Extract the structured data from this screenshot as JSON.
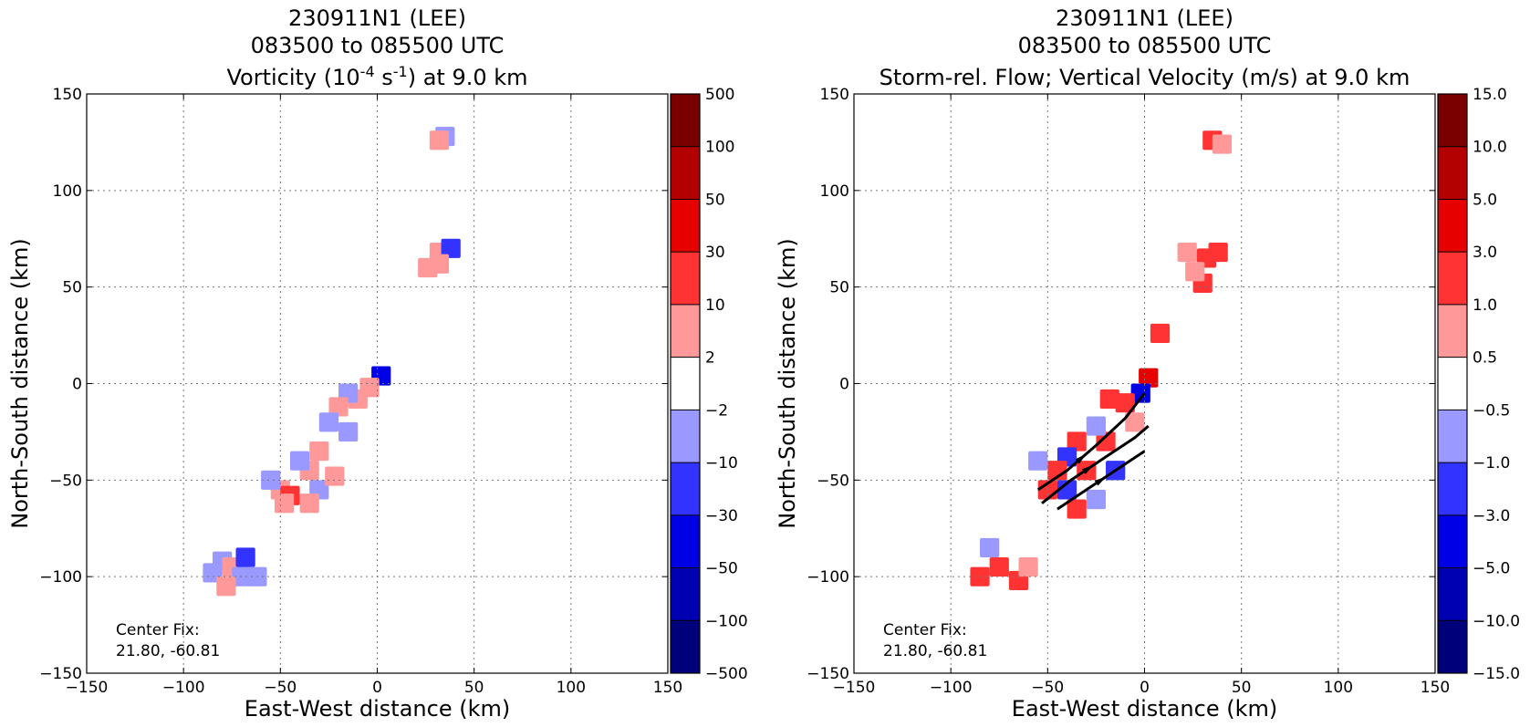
{
  "chart_data": [
    {
      "type": "heatmap",
      "title_lines": [
        "230911N1 (LEE)",
        "083500 to 085500 UTC"
      ],
      "title_var": {
        "pre": "Vorticity (10",
        "exp1": "-4",
        "mid": " s",
        "exp2": "-1",
        "post": ") at 9.0 km"
      },
      "xlabel": "East-West distance (km)",
      "ylabel": "North-South distance (km)",
      "xlim": [
        -150,
        150
      ],
      "ylim": [
        -150,
        150
      ],
      "xticks": [
        -150,
        -100,
        -50,
        0,
        50,
        100,
        150
      ],
      "yticks": [
        -150,
        -100,
        -50,
        0,
        50,
        100,
        150
      ],
      "xtick_labels": [
        "−150",
        "−100",
        "−50",
        "0",
        "50",
        "100",
        "150"
      ],
      "ytick_labels": [
        "−150",
        "−100",
        "−50",
        "0",
        "50",
        "100",
        "150"
      ],
      "grid": true,
      "annotation": [
        "Center Fix:",
        "21.80, -60.81"
      ],
      "colorbar": {
        "levels": [
          "500",
          "100",
          "50",
          "30",
          "10",
          "2",
          "−2",
          "−10",
          "−30",
          "−50",
          "−100",
          "−500"
        ],
        "colors": [
          "#7a0000",
          "#b30000",
          "#e60000",
          "#ff3333",
          "#ff9999",
          "#ffffff",
          "#9999ff",
          "#3333ff",
          "#0000e6",
          "#0000b3",
          "#00007a"
        ]
      },
      "cells": [
        {
          "x": 35,
          "y": 128,
          "v": -1
        },
        {
          "x": 32,
          "y": 126,
          "v": 1
        },
        {
          "x": 32,
          "y": 68,
          "v": 1
        },
        {
          "x": 38,
          "y": 70,
          "v": -2
        },
        {
          "x": 26,
          "y": 60,
          "v": 1
        },
        {
          "x": 32,
          "y": 62,
          "v": 1
        },
        {
          "x": 2,
          "y": 4,
          "v": -3
        },
        {
          "x": -4,
          "y": -2,
          "v": 1
        },
        {
          "x": -10,
          "y": -8,
          "v": 1
        },
        {
          "x": -15,
          "y": -5,
          "v": -1
        },
        {
          "x": -20,
          "y": -12,
          "v": 1
        },
        {
          "x": -25,
          "y": -20,
          "v": -1
        },
        {
          "x": -15,
          "y": -25,
          "v": -1
        },
        {
          "x": -30,
          "y": -35,
          "v": 1
        },
        {
          "x": -35,
          "y": -45,
          "v": 1
        },
        {
          "x": -40,
          "y": -40,
          "v": -1
        },
        {
          "x": -50,
          "y": -55,
          "v": 1
        },
        {
          "x": -45,
          "y": -58,
          "v": 2
        },
        {
          "x": -48,
          "y": -62,
          "v": 1
        },
        {
          "x": -55,
          "y": -50,
          "v": -1
        },
        {
          "x": -30,
          "y": -55,
          "v": -1
        },
        {
          "x": -22,
          "y": -48,
          "v": 1
        },
        {
          "x": -35,
          "y": -62,
          "v": 1
        },
        {
          "x": -80,
          "y": -92,
          "v": -1
        },
        {
          "x": -75,
          "y": -95,
          "v": 1
        },
        {
          "x": -70,
          "y": -100,
          "v": -1
        },
        {
          "x": -85,
          "y": -98,
          "v": -1
        },
        {
          "x": -68,
          "y": -90,
          "v": -2
        },
        {
          "x": -62,
          "y": -100,
          "v": -1
        },
        {
          "x": -78,
          "y": -105,
          "v": 1
        }
      ],
      "flow_lines": []
    },
    {
      "type": "heatmap",
      "title_lines": [
        "230911N1 (LEE)",
        "083500 to 085500 UTC"
      ],
      "title_var": {
        "pre": "Storm-rel. Flow; Vertical Velocity (m/s) at 9.0 km",
        "exp1": "",
        "mid": "",
        "exp2": "",
        "post": ""
      },
      "xlabel": "East-West distance (km)",
      "ylabel": "North-South distance (km)",
      "xlim": [
        -150,
        150
      ],
      "ylim": [
        -150,
        150
      ],
      "xticks": [
        -150,
        -100,
        -50,
        0,
        50,
        100,
        150
      ],
      "yticks": [
        -150,
        -100,
        -50,
        0,
        50,
        100,
        150
      ],
      "xtick_labels": [
        "−150",
        "−100",
        "−50",
        "0",
        "50",
        "100",
        "150"
      ],
      "ytick_labels": [
        "−150",
        "−100",
        "−50",
        "0",
        "50",
        "100",
        "150"
      ],
      "grid": true,
      "annotation": [
        "Center Fix:",
        "21.80, -60.81"
      ],
      "colorbar": {
        "levels": [
          "15.0",
          "10.0",
          "5.0",
          "3.0",
          "1.0",
          "0.5",
          "−0.5",
          "−1.0",
          "−3.0",
          "−5.0",
          "−10.0",
          "−15.0"
        ],
        "colors": [
          "#7a0000",
          "#b30000",
          "#e60000",
          "#ff3333",
          "#ff9999",
          "#ffffff",
          "#9999ff",
          "#3333ff",
          "#0000e6",
          "#0000b3",
          "#00007a"
        ]
      },
      "cells": [
        {
          "x": 35,
          "y": 126,
          "v": 2
        },
        {
          "x": 40,
          "y": 124,
          "v": 1
        },
        {
          "x": 22,
          "y": 68,
          "v": 1
        },
        {
          "x": 32,
          "y": 65,
          "v": 2
        },
        {
          "x": 38,
          "y": 68,
          "v": 2
        },
        {
          "x": 30,
          "y": 52,
          "v": 2
        },
        {
          "x": 26,
          "y": 58,
          "v": 1
        },
        {
          "x": 8,
          "y": 26,
          "v": 2
        },
        {
          "x": 2,
          "y": 3,
          "v": 3
        },
        {
          "x": -2,
          "y": -5,
          "v": -3
        },
        {
          "x": -10,
          "y": -10,
          "v": 2
        },
        {
          "x": -18,
          "y": -8,
          "v": 2
        },
        {
          "x": -5,
          "y": -20,
          "v": 1
        },
        {
          "x": -20,
          "y": -30,
          "v": 2
        },
        {
          "x": -25,
          "y": -22,
          "v": -1
        },
        {
          "x": -35,
          "y": -30,
          "v": 2
        },
        {
          "x": -40,
          "y": -38,
          "v": -2
        },
        {
          "x": -30,
          "y": -45,
          "v": 2
        },
        {
          "x": -45,
          "y": -45,
          "v": 2
        },
        {
          "x": -50,
          "y": -55,
          "v": 2
        },
        {
          "x": -40,
          "y": -55,
          "v": -2
        },
        {
          "x": -25,
          "y": -60,
          "v": -1
        },
        {
          "x": -35,
          "y": -65,
          "v": 2
        },
        {
          "x": -15,
          "y": -45,
          "v": -2
        },
        {
          "x": -55,
          "y": -40,
          "v": -1
        },
        {
          "x": -85,
          "y": -100,
          "v": 2
        },
        {
          "x": -75,
          "y": -95,
          "v": 2
        },
        {
          "x": -65,
          "y": -102,
          "v": 2
        },
        {
          "x": -60,
          "y": -95,
          "v": 1
        },
        {
          "x": -80,
          "y": -85,
          "v": -1
        }
      ],
      "flow_lines": [
        [
          [
            -55,
            -55
          ],
          [
            -40,
            -45
          ],
          [
            -25,
            -32
          ],
          [
            -10,
            -18
          ],
          [
            0,
            -5
          ]
        ],
        [
          [
            -53,
            -62
          ],
          [
            -38,
            -50
          ],
          [
            -20,
            -38
          ],
          [
            -5,
            -28
          ],
          [
            2,
            -22
          ]
        ],
        [
          [
            -45,
            -65
          ],
          [
            -30,
            -55
          ],
          [
            -15,
            -45
          ],
          [
            0,
            -35
          ]
        ]
      ]
    }
  ]
}
